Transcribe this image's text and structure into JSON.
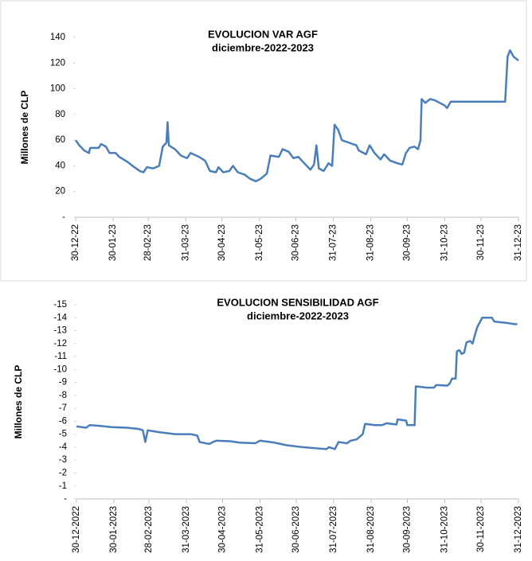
{
  "chart_data": [
    {
      "type": "line",
      "title": "EVOLUCION VAR AGF",
      "subtitle": "diciembre-2022-2023",
      "y_label": "Millones de CLP",
      "color": "#4a7ebb",
      "ylim": [
        0,
        140
      ],
      "yticks": [
        {
          "value": 0,
          "label": "-"
        },
        20,
        40,
        60,
        80,
        100,
        120,
        140
      ],
      "xlim": [
        "2022-12-30",
        "2023-12-31"
      ],
      "xticks": [
        {
          "value": "2022-12-30",
          "label": "30-12-22"
        },
        {
          "value": "2023-01-30",
          "label": "30-01-23"
        },
        {
          "value": "2023-02-28",
          "label": "28-02-23"
        },
        {
          "value": "2023-03-31",
          "label": "31-03-23"
        },
        {
          "value": "2023-04-30",
          "label": "30-04-23"
        },
        {
          "value": "2023-05-31",
          "label": "31-05-23"
        },
        {
          "value": "2023-06-30",
          "label": "30-06-23"
        },
        {
          "value": "2023-07-31",
          "label": "31-07-23"
        },
        {
          "value": "2023-08-31",
          "label": "31-08-23"
        },
        {
          "value": "2023-09-30",
          "label": "30-09-23"
        },
        {
          "value": "2023-10-31",
          "label": "31-10-23"
        },
        {
          "value": "2023-11-30",
          "label": "30-11-23"
        },
        {
          "value": "2023-12-31",
          "label": "31-12-23"
        }
      ],
      "x": [
        "2022-12-30",
        "2023-01-02",
        "2023-01-06",
        "2023-01-10",
        "2023-01-11",
        "2023-01-18",
        "2023-01-20",
        "2023-01-24",
        "2023-01-27",
        "2023-02-01",
        "2023-02-04",
        "2023-02-11",
        "2023-02-15",
        "2023-02-21",
        "2023-02-24",
        "2023-02-27",
        "2023-03-04",
        "2023-03-09",
        "2023-03-12",
        "2023-03-15",
        "2023-03-16",
        "2023-03-17",
        "2023-03-22",
        "2023-03-27",
        "2023-04-01",
        "2023-04-04",
        "2023-04-11",
        "2023-04-16",
        "2023-04-20",
        "2023-04-25",
        "2023-04-27",
        "2023-05-01",
        "2023-05-06",
        "2023-05-09",
        "2023-05-13",
        "2023-05-19",
        "2023-05-23",
        "2023-05-28",
        "2023-06-01",
        "2023-06-06",
        "2023-06-09",
        "2023-06-16",
        "2023-06-19",
        "2023-06-24",
        "2023-06-28",
        "2023-07-02",
        "2023-07-07",
        "2023-07-12",
        "2023-07-15",
        "2023-07-17",
        "2023-07-19",
        "2023-07-23",
        "2023-07-27",
        "2023-07-30",
        "2023-08-01",
        "2023-08-04",
        "2023-08-07",
        "2023-08-13",
        "2023-08-19",
        "2023-08-21",
        "2023-08-25",
        "2023-08-27",
        "2023-08-30",
        "2023-09-03",
        "2023-09-08",
        "2023-09-11",
        "2023-09-16",
        "2023-09-22",
        "2023-09-26",
        "2023-09-29",
        "2023-10-02",
        "2023-10-06",
        "2023-10-09",
        "2023-10-11",
        "2023-10-12",
        "2023-10-15",
        "2023-10-19",
        "2023-10-23",
        "2023-10-27",
        "2023-10-31",
        "2023-11-02",
        "2023-11-05",
        "2023-12-20",
        "2023-12-22",
        "2023-12-24",
        "2023-12-27",
        "2023-12-31"
      ],
      "values": [
        60,
        56,
        52,
        50,
        54,
        54,
        57,
        55,
        50,
        50,
        47,
        43,
        40,
        36,
        35,
        39,
        38,
        40,
        55,
        58,
        74,
        56,
        53,
        48,
        46,
        50,
        47,
        44,
        36,
        35,
        39,
        35,
        36,
        40,
        35,
        33,
        30,
        28,
        30,
        34,
        48,
        47,
        53,
        51,
        46,
        47,
        42,
        37,
        41,
        56,
        38,
        36,
        42,
        40,
        72,
        68,
        60,
        58,
        56,
        52,
        50,
        49,
        56,
        50,
        45,
        49,
        44,
        42,
        41,
        50,
        54,
        55,
        53,
        60,
        92,
        89,
        92,
        91,
        89,
        87,
        85,
        90,
        90,
        125,
        130,
        125,
        122
      ]
    },
    {
      "type": "line",
      "title": "EVOLUCION SENSIBILIDAD AGF",
      "subtitle": "diciembre-2022-2023",
      "y_label": "Millones de CLP",
      "color": "#4a7ebb",
      "ylim": [
        0,
        -15
      ],
      "yticks": [
        {
          "value": 0,
          "label": "-"
        },
        -1,
        -2,
        -3,
        -4,
        -5,
        -6,
        -7,
        -8,
        -9,
        -10,
        -11,
        -12,
        -13,
        -14,
        -15
      ],
      "xlim": [
        "2022-12-30",
        "2023-12-31"
      ],
      "xticks": [
        {
          "value": "2022-12-30",
          "label": "30-12-2022"
        },
        {
          "value": "2023-01-30",
          "label": "30-01-2023"
        },
        {
          "value": "2023-02-28",
          "label": "28-02-2023"
        },
        {
          "value": "2023-03-31",
          "label": "31-03-2023"
        },
        {
          "value": "2023-04-30",
          "label": "30-04-2023"
        },
        {
          "value": "2023-05-31",
          "label": "31-05-2023"
        },
        {
          "value": "2023-06-30",
          "label": "30-06-2023"
        },
        {
          "value": "2023-07-31",
          "label": "31-07-2023"
        },
        {
          "value": "2023-08-31",
          "label": "31-08-2023"
        },
        {
          "value": "2023-09-30",
          "label": "30-09-2023"
        },
        {
          "value": "2023-10-31",
          "label": "31-10-2023"
        },
        {
          "value": "2023-11-30",
          "label": "30-11-2023"
        },
        {
          "value": "2023-12-31",
          "label": "31-12-2023"
        }
      ],
      "x": [
        "2022-12-30",
        "2023-01-07",
        "2023-01-10",
        "2023-01-18",
        "2023-01-28",
        "2023-02-10",
        "2023-02-20",
        "2023-02-23",
        "2023-02-25",
        "2023-02-27",
        "2023-03-09",
        "2023-03-22",
        "2023-04-04",
        "2023-04-09",
        "2023-04-11",
        "2023-04-16",
        "2023-04-19",
        "2023-04-22",
        "2023-04-25",
        "2023-05-07",
        "2023-05-14",
        "2023-05-27",
        "2023-05-31",
        "2023-06-12",
        "2023-06-22",
        "2023-07-05",
        "2023-07-18",
        "2023-07-25",
        "2023-07-27",
        "2023-08-01",
        "2023-08-04",
        "2023-08-11",
        "2023-08-14",
        "2023-08-19",
        "2023-08-24",
        "2023-08-26",
        "2023-09-03",
        "2023-09-09",
        "2023-09-13",
        "2023-09-21",
        "2023-09-22",
        "2023-09-29",
        "2023-09-30",
        "2023-10-06",
        "2023-10-07",
        "2023-10-16",
        "2023-10-22",
        "2023-10-24",
        "2023-11-02",
        "2023-11-04",
        "2023-11-06",
        "2023-11-09",
        "2023-11-10",
        "2023-11-12",
        "2023-11-14",
        "2023-11-16",
        "2023-11-18",
        "2023-11-21",
        "2023-11-23",
        "2023-11-25",
        "2023-11-27",
        "2023-12-01",
        "2023-12-09",
        "2023-12-11",
        "2023-12-21",
        "2023-12-28",
        "2023-12-30"
      ],
      "values": [
        -5.6,
        -5.5,
        -5.7,
        -5.65,
        -5.55,
        -5.5,
        -5.4,
        -5.3,
        -4.4,
        -5.3,
        -5.15,
        -5.0,
        -5.0,
        -4.9,
        -4.4,
        -4.3,
        -4.25,
        -4.4,
        -4.5,
        -4.45,
        -4.35,
        -4.3,
        -4.5,
        -4.35,
        -4.15,
        -4.0,
        -3.9,
        -3.85,
        -4.0,
        -3.85,
        -4.4,
        -4.3,
        -4.5,
        -4.6,
        -5.0,
        -5.8,
        -5.7,
        -5.7,
        -5.85,
        -5.75,
        -6.15,
        -6.05,
        -5.7,
        -5.7,
        -8.7,
        -8.6,
        -8.6,
        -8.8,
        -8.75,
        -8.9,
        -9.3,
        -9.3,
        -11.4,
        -11.5,
        -11.2,
        -11.3,
        -12.1,
        -12.2,
        -12.0,
        -12.7,
        -13.3,
        -14.0,
        -14.0,
        -13.7,
        -13.6,
        -13.5,
        -13.5
      ]
    }
  ]
}
